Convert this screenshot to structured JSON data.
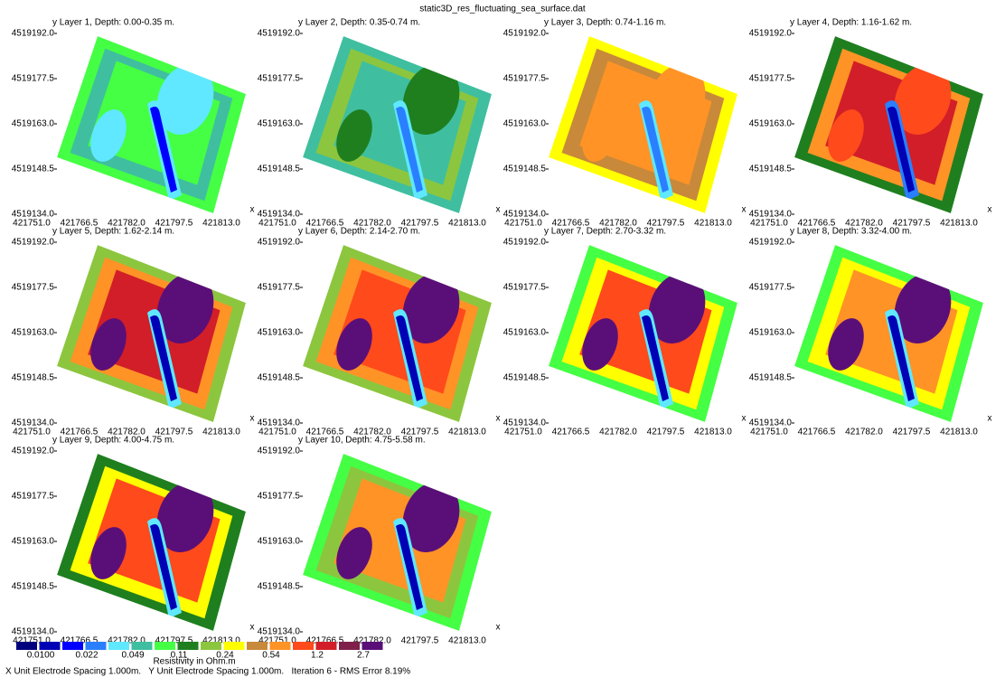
{
  "title": "static3D_res_fluctuating_sea_surface.dat",
  "panels": [
    {
      "label": "y Layer 1, Depth: 0.00-0.35 m."
    },
    {
      "label": "y Layer 2, Depth: 0.35-0.74 m."
    },
    {
      "label": "y Layer 3, Depth: 0.74-1.16 m."
    },
    {
      "label": "y Layer 4, Depth: 1.16-1.62 m."
    },
    {
      "label": "y Layer 5, Depth: 1.62-2.14 m."
    },
    {
      "label": "y Layer 6, Depth: 2.14-2.70 m."
    },
    {
      "label": "y Layer 7, Depth: 2.70-3.32 m."
    },
    {
      "label": "y Layer 8, Depth: 3.32-4.00 m."
    },
    {
      "label": "y Layer 9, Depth: 4.00-4.75 m."
    },
    {
      "label": "y Layer 10, Depth: 4.75-5.58 m."
    }
  ],
  "yticks": [
    "4519192.0",
    "4519177.5",
    "4519163.0",
    "4519148.5",
    "4519134.0"
  ],
  "xticks": [
    "421751.0",
    "421766.5",
    "421782.0",
    "421797.5",
    "421813.0"
  ],
  "x_axis_label": "x",
  "legend": {
    "colors": [
      "#00007f",
      "#0000b4",
      "#0000ff",
      "#2a7fff",
      "#5fe8ff",
      "#3fbf9f",
      "#44ff44",
      "#1f7f1f",
      "#8cc63f",
      "#ffff00",
      "#c8893a",
      "#ff9326",
      "#ff4a1c",
      "#d21e28",
      "#7f1f4a",
      "#5a0f78"
    ],
    "labels": [
      "0.0100",
      "0.022",
      "0.049",
      "0.11",
      "0.24",
      "0.54",
      "1.2",
      "2.7"
    ],
    "caption": "Resistivity in Ohm.m"
  },
  "footer": "X Unit Electrode Spacing 1.000m.   Y Unit Electrode Spacing 1.000m.   Iteration 6 - RMS Error 8.19%"
}
